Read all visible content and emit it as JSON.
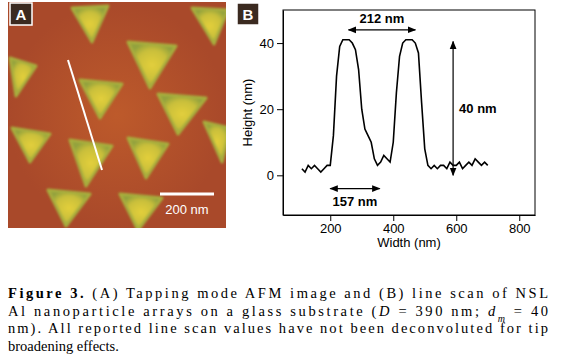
{
  "panel_a": {
    "label": "A",
    "scale_bar": "200 nm"
  },
  "chart_data": {
    "type": "line",
    "title": "B",
    "x_label": "Width (nm)",
    "y_label": "Height (nm)",
    "x": [
      110,
      120,
      130,
      140,
      150,
      160,
      170,
      180,
      190,
      200,
      210,
      220,
      230,
      240,
      250,
      260,
      270,
      280,
      290,
      300,
      310,
      320,
      330,
      340,
      350,
      360,
      370,
      380,
      390,
      400,
      410,
      420,
      430,
      440,
      450,
      460,
      470,
      480,
      490,
      500,
      510,
      520,
      530,
      540,
      550,
      560,
      570,
      580,
      590,
      600,
      610,
      620,
      630,
      640,
      650,
      660,
      670,
      680,
      690,
      700
    ],
    "values": [
      2,
      1,
      3,
      2,
      3,
      2,
      1,
      2,
      3,
      3,
      12,
      30,
      39,
      41,
      41,
      41,
      40,
      38,
      32,
      20,
      14,
      12,
      10,
      5,
      3,
      4,
      6,
      5,
      4,
      10,
      25,
      36,
      40,
      41,
      41,
      41,
      40,
      37,
      22,
      8,
      3,
      2,
      3,
      2,
      3,
      3,
      2,
      4,
      3,
      3,
      4,
      2,
      3,
      4,
      3,
      5,
      4,
      3,
      4,
      3
    ],
    "color": "#000000",
    "xlim": [
      50,
      850
    ],
    "xticks": [
      200,
      400,
      600,
      800
    ],
    "ylim": [
      -12,
      50
    ],
    "yticks": [
      0,
      20,
      40
    ],
    "grid": false,
    "annotations": [
      {
        "text": "212 nm",
        "x": [
          258,
          470
        ],
        "y": 44
      },
      {
        "text": "157 nm",
        "x": [
          200,
          357
        ],
        "y": -4
      },
      {
        "text": "40 nm",
        "x": 590,
        "y": [
          0,
          40.5
        ]
      }
    ]
  },
  "caption": {
    "lines": [
      [
        {
          "text": "Figure 3.",
          "bold": true
        },
        {
          "text": "  (A) Tapping mode AFM image and (B) line scan of NSL"
        }
      ],
      [
        {
          "text": "Al nanoparticle arrays on a glass substrate ("
        },
        {
          "text": "D",
          "italic": true
        },
        {
          "text": " = 390 nm; "
        },
        {
          "text": "d",
          "italic": true
        },
        {
          "text": "m",
          "italic": true,
          "sub": true
        },
        {
          "text": " = 40"
        }
      ],
      [
        {
          "text": "nm). All reported line scan values have not been deconvoluted for tip"
        }
      ],
      [
        {
          "text": "broadening effects."
        }
      ]
    ]
  }
}
